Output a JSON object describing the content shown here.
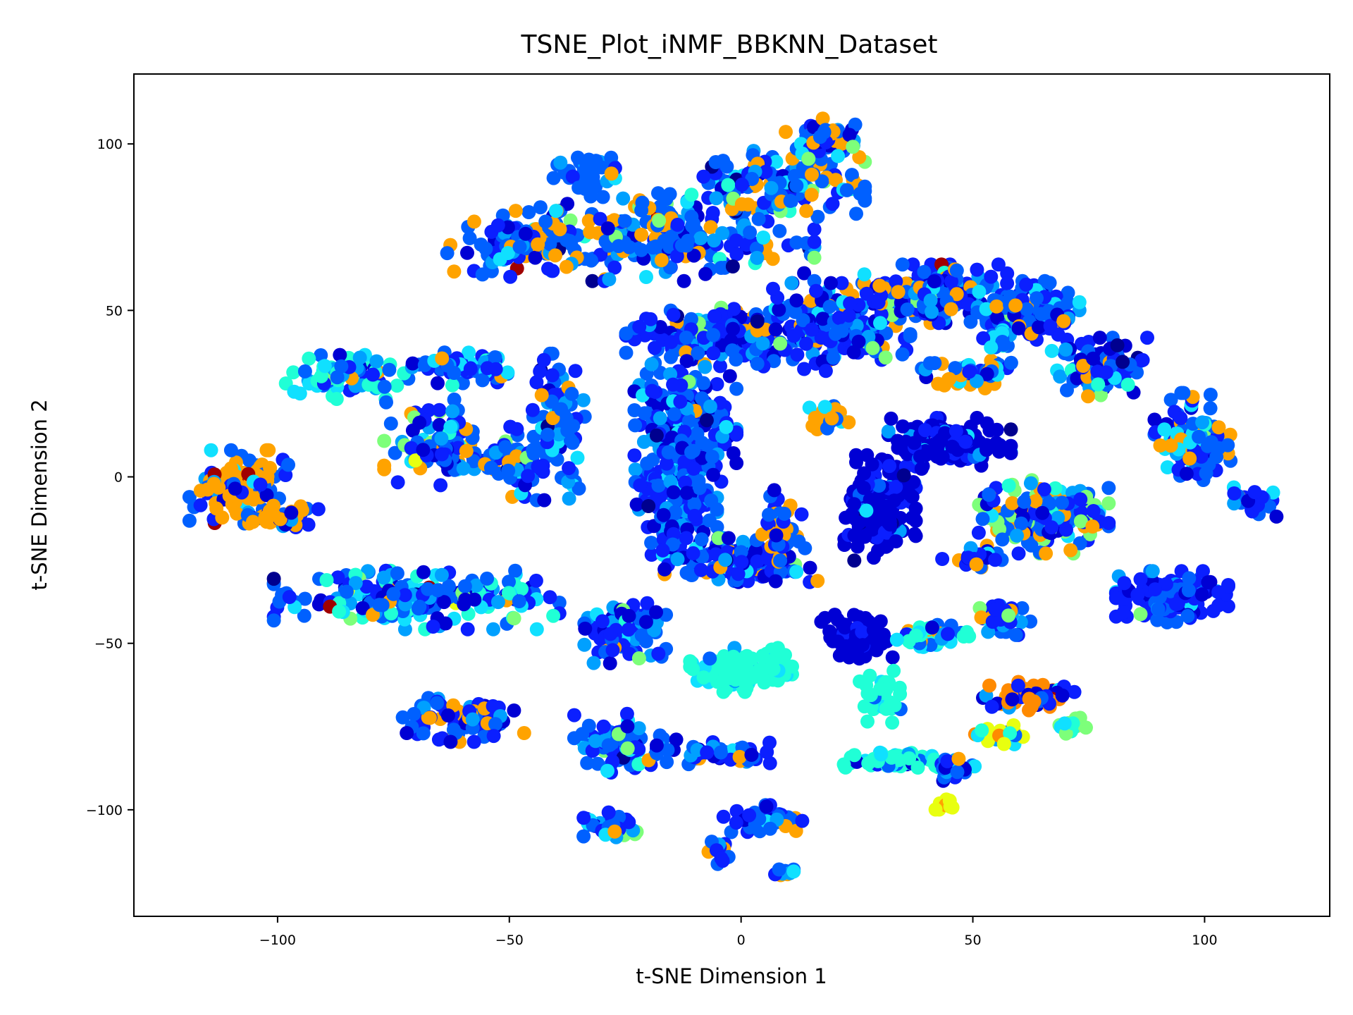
{
  "chart_data": {
    "type": "scatter",
    "title": "TSNE_Plot_iNMF_BBKNN_Dataset",
    "xlabel": "t-SNE Dimension 1",
    "ylabel": "t-SNE Dimension 2",
    "xlim": [
      -131,
      127
    ],
    "ylim": [
      -132,
      121
    ],
    "xticks": [
      -100,
      -50,
      0,
      50,
      100
    ],
    "yticks": [
      -100,
      -50,
      0,
      50,
      100
    ],
    "xtick_labels": [
      "−100",
      "−50",
      "0",
      "50",
      "100"
    ],
    "ytick_labels": [
      "−100",
      "−50",
      "0",
      "50",
      "100"
    ],
    "grid": false,
    "legend": "none",
    "colormap": "jet",
    "palette": [
      "#00008f",
      "#0000d4",
      "#0b1fff",
      "#0060ff",
      "#00a0ff",
      "#10e0ff",
      "#20ffd6",
      "#7dff7a",
      "#e8ff10",
      "#ffa300",
      "#ff8a00",
      "#a00000"
    ],
    "clusters": [
      {
        "cx": -33,
        "cy": 92,
        "rx": 8,
        "ry": 6,
        "n": 35,
        "w": [
          0,
          3,
          5,
          20,
          4,
          1,
          0,
          1,
          0,
          2,
          0,
          1
        ]
      },
      {
        "cx": -15,
        "cy": 72,
        "rx": 28,
        "ry": 12,
        "n": 220,
        "w": [
          1,
          6,
          15,
          35,
          10,
          3,
          1,
          2,
          0,
          10,
          0,
          0.5
        ]
      },
      {
        "cx": -48,
        "cy": 70,
        "rx": 14,
        "ry": 9,
        "n": 100,
        "w": [
          1,
          6,
          10,
          25,
          5,
          2,
          0,
          1,
          0,
          15,
          0,
          0.5
        ]
      },
      {
        "cx": 8,
        "cy": 88,
        "rx": 17,
        "ry": 9,
        "n": 140,
        "w": [
          1,
          6,
          15,
          35,
          8,
          4,
          1,
          4,
          0,
          10,
          0,
          0.2
        ]
      },
      {
        "cx": 18,
        "cy": 102,
        "rx": 8,
        "ry": 6,
        "n": 60,
        "w": [
          0,
          4,
          12,
          20,
          6,
          6,
          1,
          6,
          1,
          10,
          0,
          0
        ]
      },
      {
        "cx": -85,
        "cy": 30,
        "rx": 12,
        "ry": 6,
        "n": 70,
        "w": [
          1,
          5,
          10,
          10,
          10,
          15,
          20,
          2,
          0,
          2,
          0,
          0
        ]
      },
      {
        "cx": -60,
        "cy": 33,
        "rx": 10,
        "ry": 5,
        "n": 60,
        "w": [
          1,
          5,
          20,
          20,
          10,
          10,
          5,
          0,
          0,
          2,
          0,
          0
        ]
      },
      {
        "cx": -66,
        "cy": 10,
        "rx": 10,
        "ry": 12,
        "n": 90,
        "w": [
          2,
          8,
          15,
          20,
          12,
          8,
          6,
          6,
          1,
          8,
          0,
          1
        ]
      },
      {
        "cx": -50,
        "cy": 5,
        "rx": 9,
        "ry": 10,
        "n": 60,
        "w": [
          1,
          5,
          20,
          25,
          8,
          4,
          1,
          2,
          0,
          6,
          0,
          0.5
        ]
      },
      {
        "cx": -40,
        "cy": 15,
        "rx": 6,
        "ry": 20,
        "n": 80,
        "w": [
          1,
          5,
          20,
          30,
          10,
          3,
          0,
          1,
          0,
          6,
          0,
          0
        ]
      },
      {
        "cx": -108,
        "cy": -3,
        "rx": 10,
        "ry": 10,
        "n": 100,
        "w": [
          0,
          4,
          10,
          20,
          5,
          2,
          0,
          0,
          0,
          35,
          0,
          1
        ]
      },
      {
        "cx": -100,
        "cy": -12,
        "rx": 8,
        "ry": 4,
        "n": 40,
        "w": [
          0,
          4,
          10,
          20,
          5,
          2,
          0,
          0,
          0,
          30,
          0,
          1
        ]
      },
      {
        "cx": -70,
        "cy": -37,
        "rx": 28,
        "ry": 8,
        "n": 220,
        "w": [
          1,
          10,
          15,
          20,
          15,
          15,
          15,
          3,
          1,
          3,
          0,
          0.5
        ]
      },
      {
        "cx": -60,
        "cy": -73,
        "rx": 12,
        "ry": 6,
        "n": 80,
        "w": [
          1,
          10,
          20,
          20,
          5,
          3,
          0,
          0,
          0,
          15,
          0,
          0
        ]
      },
      {
        "cx": -25,
        "cy": -45,
        "rx": 8,
        "ry": 10,
        "n": 80,
        "w": [
          1,
          10,
          20,
          25,
          10,
          4,
          1,
          2,
          0,
          4,
          0,
          0
        ]
      },
      {
        "cx": -25,
        "cy": -80,
        "rx": 10,
        "ry": 8,
        "n": 80,
        "w": [
          1,
          10,
          20,
          25,
          10,
          8,
          2,
          2,
          0,
          4,
          0,
          0
        ]
      },
      {
        "cx": -28,
        "cy": -105,
        "rx": 7,
        "ry": 4,
        "n": 40,
        "w": [
          1,
          10,
          20,
          25,
          10,
          4,
          0,
          2,
          0,
          1,
          0,
          0
        ]
      },
      {
        "cx": -5,
        "cy": -83,
        "rx": 12,
        "ry": 3,
        "n": 50,
        "w": [
          1,
          10,
          25,
          25,
          10,
          4,
          0,
          0,
          0,
          6,
          0,
          0
        ]
      },
      {
        "cx": 0,
        "cy": -58,
        "rx": 10,
        "ry": 6,
        "n": 120,
        "w": [
          0,
          0,
          0,
          1,
          2,
          10,
          80,
          0,
          0,
          0,
          0,
          0
        ]
      },
      {
        "cx": 5,
        "cy": -103,
        "rx": 8,
        "ry": 4,
        "n": 40,
        "w": [
          0,
          6,
          15,
          25,
          6,
          3,
          0,
          0,
          0,
          8,
          0,
          0.5
        ]
      },
      {
        "cx": -5,
        "cy": -113,
        "rx": 3,
        "ry": 4,
        "n": 12,
        "w": [
          0,
          6,
          20,
          20,
          6,
          2,
          0,
          0,
          0,
          5,
          0,
          0
        ]
      },
      {
        "cx": 9,
        "cy": -118,
        "rx": 3,
        "ry": 2,
        "n": 10,
        "w": [
          0,
          8,
          20,
          20,
          6,
          2,
          0,
          0,
          0,
          4,
          0,
          0
        ]
      },
      {
        "cx": -5,
        "cy": 42,
        "rx": 18,
        "ry": 8,
        "n": 180,
        "w": [
          1,
          15,
          30,
          25,
          6,
          3,
          0,
          3,
          0,
          5,
          0,
          0.2
        ]
      },
      {
        "cx": -12,
        "cy": 15,
        "rx": 10,
        "ry": 18,
        "n": 200,
        "w": [
          1,
          12,
          25,
          30,
          12,
          5,
          0,
          1,
          0,
          3,
          0,
          0
        ]
      },
      {
        "cx": -14,
        "cy": -8,
        "rx": 8,
        "ry": 14,
        "n": 150,
        "w": [
          1,
          12,
          25,
          30,
          12,
          5,
          0,
          1,
          0,
          3,
          0,
          0
        ]
      },
      {
        "cx": 0,
        "cy": -25,
        "rx": 15,
        "ry": 6,
        "n": 130,
        "w": [
          1,
          12,
          25,
          30,
          10,
          4,
          0,
          1,
          0,
          5,
          0,
          0.3
        ]
      },
      {
        "cx": 20,
        "cy": 45,
        "rx": 15,
        "ry": 12,
        "n": 200,
        "w": [
          1,
          20,
          30,
          20,
          6,
          3,
          0,
          3,
          0,
          6,
          0,
          0.2
        ]
      },
      {
        "cx": 42,
        "cy": 55,
        "rx": 14,
        "ry": 8,
        "n": 160,
        "w": [
          1,
          15,
          30,
          25,
          6,
          4,
          1,
          3,
          0,
          6,
          0,
          0.3
        ]
      },
      {
        "cx": 62,
        "cy": 50,
        "rx": 10,
        "ry": 8,
        "n": 120,
        "w": [
          1,
          10,
          25,
          25,
          8,
          6,
          2,
          3,
          0,
          6,
          0,
          0.5
        ]
      },
      {
        "cx": 78,
        "cy": 33,
        "rx": 10,
        "ry": 8,
        "n": 90,
        "w": [
          1,
          10,
          20,
          25,
          8,
          8,
          3,
          1,
          0,
          10,
          0,
          0.5
        ]
      },
      {
        "cx": 98,
        "cy": 12,
        "rx": 8,
        "ry": 12,
        "n": 90,
        "w": [
          1,
          8,
          15,
          20,
          8,
          8,
          1,
          1,
          0,
          20,
          0,
          1
        ]
      },
      {
        "cx": 110,
        "cy": -8,
        "rx": 5,
        "ry": 5,
        "n": 25,
        "w": [
          1,
          8,
          15,
          20,
          8,
          8,
          0,
          0,
          0,
          10,
          0,
          0
        ]
      },
      {
        "cx": 50,
        "cy": 31,
        "rx": 10,
        "ry": 4,
        "n": 50,
        "w": [
          0,
          5,
          10,
          15,
          5,
          5,
          1,
          0,
          0,
          25,
          0,
          0
        ]
      },
      {
        "cx": 55,
        "cy": 42,
        "rx": 5,
        "ry": 3,
        "n": 20,
        "w": [
          0,
          5,
          10,
          15,
          5,
          15,
          10,
          0,
          0,
          5,
          0,
          1
        ]
      },
      {
        "cx": 19,
        "cy": 18,
        "rx": 4,
        "ry": 4,
        "n": 25,
        "w": [
          0,
          0,
          2,
          2,
          2,
          2,
          0,
          0,
          0,
          30,
          0,
          0
        ]
      },
      {
        "cx": 9,
        "cy": -15,
        "rx": 4,
        "ry": 10,
        "n": 40,
        "w": [
          1,
          5,
          20,
          15,
          5,
          2,
          0,
          0,
          0,
          20,
          0,
          2
        ]
      },
      {
        "cx": 30,
        "cy": -10,
        "rx": 7,
        "ry": 15,
        "n": 180,
        "w": [
          3,
          60,
          15,
          3,
          2,
          3,
          0,
          0,
          0,
          0,
          0,
          0
        ]
      },
      {
        "cx": 45,
        "cy": 10,
        "rx": 12,
        "ry": 7,
        "n": 140,
        "w": [
          3,
          60,
          15,
          5,
          3,
          4,
          0,
          0,
          0,
          1,
          0,
          0
        ]
      },
      {
        "cx": 65,
        "cy": -12,
        "rx": 13,
        "ry": 10,
        "n": 180,
        "w": [
          1,
          10,
          20,
          25,
          8,
          6,
          2,
          20,
          0,
          12,
          0,
          0.3
        ]
      },
      {
        "cx": 50,
        "cy": -24,
        "rx": 6,
        "ry": 3,
        "n": 25,
        "w": [
          1,
          10,
          20,
          20,
          5,
          2,
          0,
          0,
          0,
          15,
          0,
          0
        ]
      },
      {
        "cx": 93,
        "cy": -36,
        "rx": 11,
        "ry": 7,
        "n": 160,
        "w": [
          1,
          10,
          60,
          20,
          5,
          2,
          0,
          6,
          0,
          0,
          0,
          0
        ]
      },
      {
        "cx": 25,
        "cy": -48,
        "rx": 7,
        "ry": 6,
        "n": 80,
        "w": [
          2,
          90,
          5,
          2,
          0,
          0,
          0,
          0,
          0,
          0,
          0,
          0
        ]
      },
      {
        "cx": 41,
        "cy": -48,
        "rx": 8,
        "ry": 4,
        "n": 40,
        "w": [
          1,
          5,
          10,
          10,
          8,
          10,
          25,
          0,
          0,
          5,
          0,
          0
        ]
      },
      {
        "cx": 57,
        "cy": -42,
        "rx": 5,
        "ry": 5,
        "n": 40,
        "w": [
          1,
          5,
          20,
          25,
          10,
          6,
          0,
          2,
          0,
          10,
          0,
          0
        ]
      },
      {
        "cx": 30,
        "cy": -65,
        "rx": 4,
        "ry": 8,
        "n": 40,
        "w": [
          0,
          0,
          0,
          1,
          1,
          5,
          60,
          0,
          0,
          0,
          0,
          0
        ]
      },
      {
        "cx": 62,
        "cy": -66,
        "rx": 9,
        "ry": 4,
        "n": 60,
        "w": [
          0,
          25,
          15,
          5,
          2,
          2,
          0,
          0,
          0,
          5,
          35,
          1
        ]
      },
      {
        "cx": 72,
        "cy": -75,
        "rx": 3,
        "ry": 3,
        "n": 15,
        "w": [
          0,
          0,
          0,
          0,
          0,
          5,
          10,
          20,
          0,
          0,
          0,
          0
        ]
      },
      {
        "cx": 56,
        "cy": -78,
        "rx": 5,
        "ry": 4,
        "n": 20,
        "w": [
          0,
          2,
          5,
          5,
          5,
          10,
          5,
          5,
          25,
          5,
          5,
          0
        ]
      },
      {
        "cx": 33,
        "cy": -85,
        "rx": 12,
        "ry": 2.5,
        "n": 70,
        "w": [
          0,
          2,
          3,
          3,
          3,
          10,
          50,
          0,
          0,
          0,
          0,
          0
        ]
      },
      {
        "cx": 47,
        "cy": -88,
        "rx": 5,
        "ry": 3,
        "n": 20,
        "w": [
          1,
          8,
          10,
          10,
          5,
          5,
          2,
          0,
          3,
          8,
          0,
          0
        ]
      },
      {
        "cx": 45,
        "cy": -99,
        "rx": 3,
        "ry": 2,
        "n": 10,
        "w": [
          0,
          0,
          0,
          0,
          0,
          0,
          0,
          0,
          20,
          2,
          0,
          0
        ]
      }
    ]
  }
}
